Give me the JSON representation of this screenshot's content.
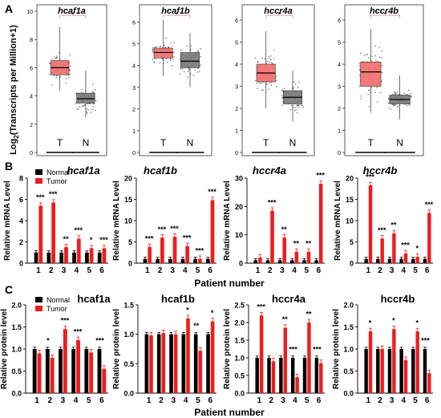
{
  "panel_labels": [
    "A",
    "B",
    "C"
  ],
  "row_a": {
    "ylabel_prefix": "Log",
    "ylabel_sub": "2",
    "ylabel_rest": "(Transcripts per Million+1)",
    "tumor_label": "T",
    "normal_label": "N",
    "significance": "*"
  },
  "row_b": {
    "ylabel": "Relative  mRNA Level",
    "xlabel": "Patient number"
  },
  "row_c": {
    "ylabel": "Relative protein level",
    "xlabel": "Patient number"
  },
  "legend": {
    "normal": "Normal",
    "tumor": "Tumor"
  },
  "colors": {
    "normal": "#000000",
    "tumor": "#ee1c1c",
    "box_tumor": "#f26b6b",
    "box_normal": "#777777"
  },
  "chart_data": [
    {
      "panel": "A",
      "type": "box",
      "title": "hcaf1a",
      "ylim": [
        0,
        10
      ],
      "yticks": [
        0,
        2,
        4,
        6,
        8,
        10
      ],
      "categories": [
        "T",
        "N"
      ],
      "boxes": [
        {
          "name": "T",
          "q1": 5.5,
          "median": 6.0,
          "q3": 6.5,
          "whisker_low": 4.4,
          "whisker_high": 8.9
        },
        {
          "name": "N",
          "q1": 3.5,
          "median": 3.8,
          "q3": 4.2,
          "whisker_low": 2.5,
          "whisker_high": 5.8
        }
      ]
    },
    {
      "panel": "A",
      "type": "box",
      "title": "hcaf1b",
      "ylim": [
        0,
        6.5
      ],
      "yticks": [
        0,
        1,
        2,
        3,
        4,
        5,
        6
      ],
      "categories": [
        "T",
        "N"
      ],
      "boxes": [
        {
          "name": "T",
          "q1": 4.35,
          "median": 4.6,
          "q3": 4.8,
          "whisker_low": 3.5,
          "whisker_high": 6.1
        },
        {
          "name": "N",
          "q1": 3.9,
          "median": 4.2,
          "q3": 4.6,
          "whisker_low": 3.0,
          "whisker_high": 5.5
        }
      ]
    },
    {
      "panel": "A",
      "type": "box",
      "title": "hccr4a",
      "ylim": [
        0,
        6.4
      ],
      "yticks": [
        0,
        1,
        2,
        3,
        4,
        5,
        6
      ],
      "categories": [
        "T",
        "N"
      ],
      "boxes": [
        {
          "name": "T",
          "q1": 3.2,
          "median": 3.6,
          "q3": 4.0,
          "whisker_low": 2.0,
          "whisker_high": 5.5
        },
        {
          "name": "N",
          "q1": 2.2,
          "median": 2.5,
          "q3": 2.8,
          "whisker_low": 1.4,
          "whisker_high": 3.7
        }
      ]
    },
    {
      "panel": "A",
      "type": "box",
      "title": "hccr4b",
      "ylim": [
        0,
        6.4
      ],
      "yticks": [
        0,
        1,
        2,
        3,
        4,
        5,
        6
      ],
      "categories": [
        "T",
        "N"
      ],
      "boxes": [
        {
          "name": "T",
          "q1": 3.0,
          "median": 3.65,
          "q3": 4.1,
          "whisker_low": 1.8,
          "whisker_high": 5.6
        },
        {
          "name": "N",
          "q1": 2.2,
          "median": 2.4,
          "q3": 2.6,
          "whisker_low": 1.5,
          "whisker_high": 3.5
        }
      ]
    },
    {
      "panel": "B",
      "type": "bar",
      "title": "hcaf1a",
      "categories": [
        "1",
        "2",
        "3",
        "4",
        "5",
        "6"
      ],
      "ylim": [
        0,
        8
      ],
      "yticks": [
        0,
        2,
        4,
        6,
        8
      ],
      "series": [
        {
          "name": "Normal",
          "values": [
            1,
            1,
            1,
            1,
            1,
            1
          ]
        },
        {
          "name": "Tumor",
          "values": [
            5.4,
            5.7,
            1.5,
            2.3,
            1.4,
            1.4
          ]
        }
      ],
      "annotations": [
        "***",
        "***",
        "**",
        "***",
        "*",
        "***"
      ]
    },
    {
      "panel": "B",
      "type": "bar",
      "title": "hcaf1b",
      "categories": [
        "1",
        "2",
        "3",
        "4",
        "5",
        "6"
      ],
      "ylim": [
        0,
        20
      ],
      "yticks": [
        0,
        5,
        10,
        15,
        20
      ],
      "series": [
        {
          "name": "Normal",
          "values": [
            1,
            1,
            1,
            1,
            1,
            1
          ]
        },
        {
          "name": "Tumor",
          "values": [
            3.8,
            6.0,
            6.2,
            4.0,
            1.0,
            14.8
          ]
        }
      ],
      "annotations": [
        "***",
        "***",
        "***",
        "***",
        "***",
        "***"
      ]
    },
    {
      "panel": "B",
      "type": "bar",
      "title": "hccr4a",
      "categories": [
        "1",
        "2",
        "3",
        "4",
        "5",
        "6"
      ],
      "ylim": [
        0,
        30
      ],
      "yticks": [
        0,
        10,
        20,
        30
      ],
      "series": [
        {
          "name": "Normal",
          "values": [
            1,
            1,
            1,
            1,
            1,
            1
          ]
        },
        {
          "name": "Tumor",
          "values": [
            2.0,
            18.5,
            9.0,
            4.0,
            4.0,
            28.0
          ]
        }
      ],
      "annotations": [
        "",
        "***",
        "**",
        "**",
        "**",
        "***"
      ]
    },
    {
      "panel": "B",
      "type": "bar",
      "title": "hccr4b",
      "categories": [
        "1",
        "2",
        "3",
        "4",
        "5",
        "6"
      ],
      "ylim": [
        0,
        20
      ],
      "yticks": [
        0,
        5,
        10,
        15,
        20
      ],
      "series": [
        {
          "name": "Normal",
          "values": [
            1,
            1,
            1,
            1,
            1,
            1
          ]
        },
        {
          "name": "Tumor",
          "values": [
            18.3,
            5.8,
            7.0,
            2.3,
            1.5,
            11.8
          ]
        }
      ],
      "annotations": [
        "***",
        "***",
        "**",
        "***",
        "*",
        "***"
      ]
    },
    {
      "panel": "C",
      "type": "bar",
      "title": "hcaf1a",
      "categories": [
        "1",
        "2",
        "3",
        "4",
        "5",
        "6"
      ],
      "ylim": [
        0,
        2.0
      ],
      "yticks": [
        0.0,
        0.5,
        1.0,
        1.5,
        2.0
      ],
      "series": [
        {
          "name": "Normal",
          "values": [
            1,
            1,
            1,
            1,
            1,
            1
          ]
        },
        {
          "name": "Tumor",
          "values": [
            0.9,
            0.8,
            1.45,
            1.2,
            0.92,
            0.55
          ]
        }
      ],
      "annotations": [
        "",
        "*",
        "***",
        "***",
        "",
        "***"
      ]
    },
    {
      "panel": "C",
      "type": "bar",
      "title": "hcaf1b",
      "categories": [
        "1",
        "2",
        "3",
        "4",
        "5",
        "6"
      ],
      "ylim": [
        0,
        1.5
      ],
      "yticks": [
        0.0,
        0.5,
        1.0,
        1.5
      ],
      "series": [
        {
          "name": "Normal",
          "values": [
            1,
            1,
            1,
            1,
            1,
            1
          ]
        },
        {
          "name": "Tumor",
          "values": [
            0.98,
            1.02,
            1.0,
            1.27,
            0.72,
            1.22
          ]
        }
      ],
      "annotations": [
        "",
        "",
        "",
        "*",
        "**",
        "*"
      ]
    },
    {
      "panel": "C",
      "type": "bar",
      "title": "hccr4a",
      "categories": [
        "1",
        "2",
        "3",
        "4",
        "5",
        "6"
      ],
      "ylim": [
        0,
        2.5
      ],
      "yticks": [
        0.0,
        0.5,
        1.0,
        1.5,
        2.0,
        2.5
      ],
      "series": [
        {
          "name": "Normal",
          "values": [
            1,
            1,
            1,
            1,
            1,
            1
          ]
        },
        {
          "name": "Tumor",
          "values": [
            2.2,
            0.9,
            1.85,
            0.45,
            2.0,
            0.85
          ]
        }
      ],
      "annotations": [
        "***",
        "",
        "**",
        "***",
        "**",
        "***"
      ]
    },
    {
      "panel": "C",
      "type": "bar",
      "title": "hccr4b",
      "categories": [
        "1",
        "2",
        "3",
        "4",
        "5",
        "6"
      ],
      "ylim": [
        0,
        2.0
      ],
      "yticks": [
        0.0,
        0.5,
        1.0,
        1.5,
        2.0
      ],
      "series": [
        {
          "name": "Normal",
          "values": [
            1,
            1,
            1,
            1,
            1,
            1
          ]
        },
        {
          "name": "Tumor",
          "values": [
            1.4,
            1.0,
            1.45,
            0.75,
            1.4,
            0.45
          ]
        }
      ],
      "annotations": [
        "*",
        "",
        "*",
        "",
        "*",
        "***"
      ]
    }
  ]
}
